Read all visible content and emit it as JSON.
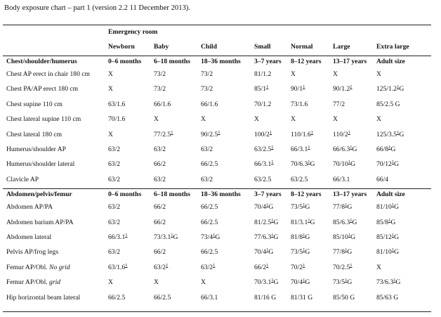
{
  "caption": "Body exposure chart – part 1 (version 2.2 11 December 2013).",
  "header": {
    "emergency_room": "Emergency room",
    "columns": [
      "Newborn",
      "Baby",
      "Child",
      "Small",
      "Normal",
      "Large",
      "Extra large"
    ]
  },
  "sections": [
    {
      "title": "Chest/shoulder/humerus",
      "ages": [
        "0–6 months",
        "6–18 months",
        "18–36 months",
        "3–7 years",
        "8–12 years",
        "13–17 years",
        "Adult size"
      ],
      "rows": [
        {
          "label": "Chest AP erect in chair 180 cm",
          "cells": [
            [
              "X"
            ],
            [
              "73/2"
            ],
            [
              "73/2"
            ],
            [
              "81/1.2"
            ],
            [
              "X"
            ],
            [
              "X"
            ],
            [
              "X"
            ]
          ]
        },
        {
          "label": "Chest PA/AP erect 180 cm",
          "cells": [
            [
              "X"
            ],
            [
              "73/2"
            ],
            [
              "73/2"
            ],
            [
              "85/1",
              "1",
              ""
            ],
            [
              "90/1",
              "1",
              ""
            ],
            [
              "90/1.2",
              "1",
              ""
            ],
            [
              "125/1.2",
              "1",
              "G"
            ]
          ]
        },
        {
          "label": "Chest supine 110 cm",
          "cells": [
            [
              "63/1.6"
            ],
            [
              "66/1.6"
            ],
            [
              "66/1.6"
            ],
            [
              "70/1.2"
            ],
            [
              "73/1.6"
            ],
            [
              "77/2"
            ],
            [
              "85/2.5 G"
            ]
          ]
        },
        {
          "label": "Chest lateral supine 110 cm",
          "cells": [
            [
              "70/1.6"
            ],
            [
              "X"
            ],
            [
              "X"
            ],
            [
              "X"
            ],
            [
              "X"
            ],
            [
              "X"
            ],
            [
              "X"
            ]
          ]
        },
        {
          "label": "Chest lateral 180 cm",
          "cells": [
            [
              "X"
            ],
            [
              "77/2.5",
              "1",
              ""
            ],
            [
              "90/2.5",
              "1",
              ""
            ],
            [
              "100/2",
              "1",
              ""
            ],
            [
              "110/1.6",
              "1",
              ""
            ],
            [
              "110/2",
              "1",
              ""
            ],
            [
              "125/3.5",
              "1",
              "G"
            ]
          ]
        },
        {
          "label": "Humerus/shoulder AP",
          "cells": [
            [
              "63/2"
            ],
            [
              "63/2"
            ],
            [
              "63/2"
            ],
            [
              "63/2.5",
              "1",
              ""
            ],
            [
              "66/3.1",
              "1",
              ""
            ],
            [
              "66/6.3",
              "1",
              "G"
            ],
            [
              "66/8",
              "1",
              "G"
            ]
          ]
        },
        {
          "label": "Humerus/shoulder lateral",
          "cells": [
            [
              "63/2"
            ],
            [
              "66/2"
            ],
            [
              "66/2.5"
            ],
            [
              "66/3.1",
              "1",
              ""
            ],
            [
              "70/6.3",
              "1",
              "G"
            ],
            [
              "70/10",
              "1",
              "G"
            ],
            [
              "70/12",
              "1",
              "G"
            ]
          ]
        },
        {
          "label": "Clavicle AP",
          "cells": [
            [
              "63/2"
            ],
            [
              "63/2"
            ],
            [
              "63/2"
            ],
            [
              "63/2.5"
            ],
            [
              "63/2.5"
            ],
            [
              "66/3.1"
            ],
            [
              "66/4"
            ]
          ]
        }
      ]
    },
    {
      "title": "Abdomen/pelvis/femur",
      "ages": [
        "0–6 months",
        "6–18 months",
        "18–36 months",
        "3–7 years",
        "8–12 years",
        "13–17 years",
        "Adult size"
      ],
      "rows": [
        {
          "label": "Abdomen AP/PA",
          "cells": [
            [
              "63/2"
            ],
            [
              "66/2"
            ],
            [
              "66/2.5"
            ],
            [
              "70/4",
              "1",
              "G"
            ],
            [
              "73/5",
              "1",
              "G"
            ],
            [
              "77/8",
              "1",
              "G"
            ],
            [
              "81/10",
              "1",
              "G"
            ]
          ]
        },
        {
          "label": "Abdomen barium AP/PA",
          "cells": [
            [
              "63/2"
            ],
            [
              "66/2"
            ],
            [
              "66/2.5"
            ],
            [
              "81/2.5",
              "1",
              "G"
            ],
            [
              "81/3.1",
              "1",
              "G"
            ],
            [
              "85/6.3",
              "1",
              "G"
            ],
            [
              "85/8",
              "1",
              "G"
            ]
          ]
        },
        {
          "label": "Abdomen lateral",
          "cells": [
            [
              "66/3.1",
              "1",
              ""
            ],
            [
              "73/3.1",
              "1",
              "G"
            ],
            [
              "73/4",
              "1",
              "G"
            ],
            [
              "77/6.3",
              "1",
              "G"
            ],
            [
              "81/8",
              "1",
              "G"
            ],
            [
              "85/10",
              "1",
              "G"
            ],
            [
              "85/12",
              "1",
              "G"
            ]
          ]
        },
        {
          "label": "Pelvis AP/frog legs",
          "cells": [
            [
              "63/2"
            ],
            [
              "66/2"
            ],
            [
              "66/2.5"
            ],
            [
              "70/4",
              "1",
              "G"
            ],
            [
              "73/5",
              "1",
              "G"
            ],
            [
              "77/8",
              "1",
              "G"
            ],
            [
              "81/10",
              "1",
              "G"
            ]
          ]
        },
        {
          "label": "Femur AP/Obl.",
          "label_italic": "No grid",
          "cells": [
            [
              "63/1.6",
              "1",
              ""
            ],
            [
              "63/2",
              "1",
              ""
            ],
            [
              "63/2",
              "1",
              ""
            ],
            [
              "66/2",
              "1",
              ""
            ],
            [
              "70/2",
              "1",
              ""
            ],
            [
              "70/2.5",
              "1",
              ""
            ],
            [
              "X"
            ]
          ]
        },
        {
          "label": "Femur AP/Obl.",
          "label_italic": "grid",
          "cells": [
            [
              "X"
            ],
            [
              "X"
            ],
            [
              "X"
            ],
            [
              "70/3.1",
              "1",
              "G"
            ],
            [
              "70/4",
              "1",
              "G"
            ],
            [
              "73/5",
              "1",
              "G"
            ],
            [
              "73/6.3",
              "1",
              "G"
            ]
          ]
        },
        {
          "label": "Hip horizontal beam lateral",
          "cells": [
            [
              "66/2.5"
            ],
            [
              "66/2.5"
            ],
            [
              "66/3.1"
            ],
            [
              "81/16 G"
            ],
            [
              "81/31 G"
            ],
            [
              "85/50 G"
            ],
            [
              "85/63 G"
            ]
          ]
        }
      ]
    }
  ]
}
